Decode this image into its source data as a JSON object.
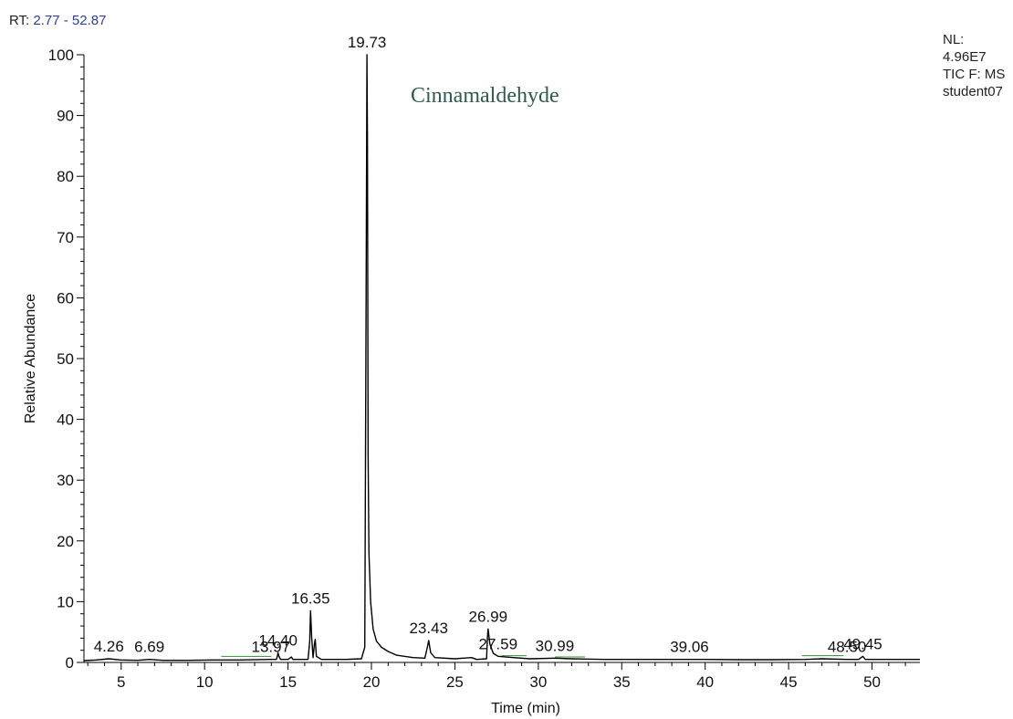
{
  "header": {
    "rt_prefix": "RT:",
    "rt_range": "2.77 - 52.87",
    "nl_label": "NL:",
    "nl_value": "4.96E7",
    "scan_filter": "TIC F:  MS",
    "sample_name": "student07"
  },
  "colors": {
    "trace": "#000000",
    "range_text": "#2c3fa0",
    "annotation_text": "#2f5a4e",
    "integration_baseline": "#3a8a3a"
  },
  "chart_data": {
    "type": "line",
    "title": "",
    "annotation": "Cinnamaldehyde",
    "xlabel": "Time (min)",
    "ylabel": "Relative Abundance",
    "xlim": [
      2.77,
      52.87
    ],
    "ylim": [
      0,
      100
    ],
    "x_ticks": [
      5,
      10,
      15,
      20,
      25,
      30,
      35,
      40,
      45,
      50
    ],
    "y_ticks": [
      0,
      10,
      20,
      30,
      40,
      50,
      60,
      70,
      80,
      90,
      100
    ],
    "grid": false,
    "series": [
      {
        "points": [
          [
            2.77,
            0.3
          ],
          [
            3.5,
            0.4
          ],
          [
            4.26,
            0.6
          ],
          [
            5.0,
            0.4
          ],
          [
            6.0,
            0.35
          ],
          [
            6.69,
            0.5
          ],
          [
            7.5,
            0.35
          ],
          [
            9.0,
            0.35
          ],
          [
            10.5,
            0.4
          ],
          [
            12.0,
            0.4
          ],
          [
            13.97,
            0.5
          ],
          [
            14.3,
            0.5
          ],
          [
            14.36,
            1.0
          ],
          [
            14.4,
            1.6
          ],
          [
            14.46,
            1.0
          ],
          [
            14.55,
            0.5
          ],
          [
            15.0,
            0.5
          ],
          [
            15.2,
            0.9
          ],
          [
            15.3,
            0.5
          ],
          [
            16.2,
            0.5
          ],
          [
            16.3,
            3.5
          ],
          [
            16.35,
            8.5
          ],
          [
            16.42,
            4.0
          ],
          [
            16.5,
            0.8
          ],
          [
            16.58,
            3.0
          ],
          [
            16.63,
            3.8
          ],
          [
            16.7,
            1.0
          ],
          [
            17.0,
            0.5
          ],
          [
            18.5,
            0.5
          ],
          [
            19.4,
            0.6
          ],
          [
            19.6,
            2.5
          ],
          [
            19.68,
            60.0
          ],
          [
            19.73,
            100.0
          ],
          [
            19.76,
            86.0
          ],
          [
            19.8,
            34.0
          ],
          [
            19.85,
            18.0
          ],
          [
            19.95,
            10.0
          ],
          [
            20.1,
            5.5
          ],
          [
            20.3,
            3.5
          ],
          [
            20.6,
            2.5
          ],
          [
            21.0,
            1.8
          ],
          [
            21.5,
            1.2
          ],
          [
            22.5,
            0.8
          ],
          [
            23.2,
            0.7
          ],
          [
            23.35,
            2.5
          ],
          [
            23.43,
            3.6
          ],
          [
            23.55,
            1.6
          ],
          [
            23.8,
            0.8
          ],
          [
            25.0,
            0.6
          ],
          [
            26.0,
            0.8
          ],
          [
            26.3,
            0.5
          ],
          [
            26.9,
            0.6
          ],
          [
            26.95,
            4.0
          ],
          [
            26.99,
            5.5
          ],
          [
            27.1,
            3.0
          ],
          [
            27.3,
            1.5
          ],
          [
            27.59,
            1.0
          ],
          [
            28.5,
            0.8
          ],
          [
            29.5,
            0.6
          ],
          [
            30.99,
            0.7
          ],
          [
            32.0,
            0.6
          ],
          [
            34.0,
            0.5
          ],
          [
            36.0,
            0.5
          ],
          [
            38.0,
            0.5
          ],
          [
            39.06,
            0.5
          ],
          [
            40.0,
            0.5
          ],
          [
            42.0,
            0.45
          ],
          [
            44.0,
            0.45
          ],
          [
            46.0,
            0.5
          ],
          [
            47.0,
            0.6
          ],
          [
            48.5,
            0.5
          ],
          [
            49.2,
            0.5
          ],
          [
            49.45,
            1.0
          ],
          [
            49.6,
            0.5
          ],
          [
            51.0,
            0.5
          ],
          [
            52.0,
            0.5
          ],
          [
            52.87,
            0.5
          ]
        ]
      }
    ],
    "peak_labels": [
      {
        "text": "4.26",
        "x": 4.26,
        "y": 0.6
      },
      {
        "text": "6.69",
        "x": 6.69,
        "y": 0.5
      },
      {
        "text": "13.97",
        "x": 13.97,
        "y": 0.5
      },
      {
        "text": "14.40",
        "x": 14.4,
        "y": 1.6
      },
      {
        "text": "16.35",
        "x": 16.35,
        "y": 8.5
      },
      {
        "text": "19.73",
        "x": 19.73,
        "y": 100.0
      },
      {
        "text": "23.43",
        "x": 23.43,
        "y": 3.6
      },
      {
        "text": "26.99",
        "x": 26.99,
        "y": 5.5
      },
      {
        "text": "27.59",
        "x": 27.59,
        "y": 1.0
      },
      {
        "text": "30.99",
        "x": 30.99,
        "y": 0.7
      },
      {
        "text": "39.06",
        "x": 39.06,
        "y": 0.5
      },
      {
        "text": "48.50",
        "x": 48.5,
        "y": 0.5
      },
      {
        "text": "49.45",
        "x": 49.45,
        "y": 1.0
      }
    ],
    "integration_baselines": [
      {
        "x0": 11.0,
        "x1": 14.0,
        "y": 1.0
      },
      {
        "x0": 27.8,
        "x1": 29.3,
        "y": 1.1
      },
      {
        "x0": 31.0,
        "x1": 32.8,
        "y": 0.9
      },
      {
        "x0": 45.8,
        "x1": 48.3,
        "y": 1.1
      }
    ]
  }
}
